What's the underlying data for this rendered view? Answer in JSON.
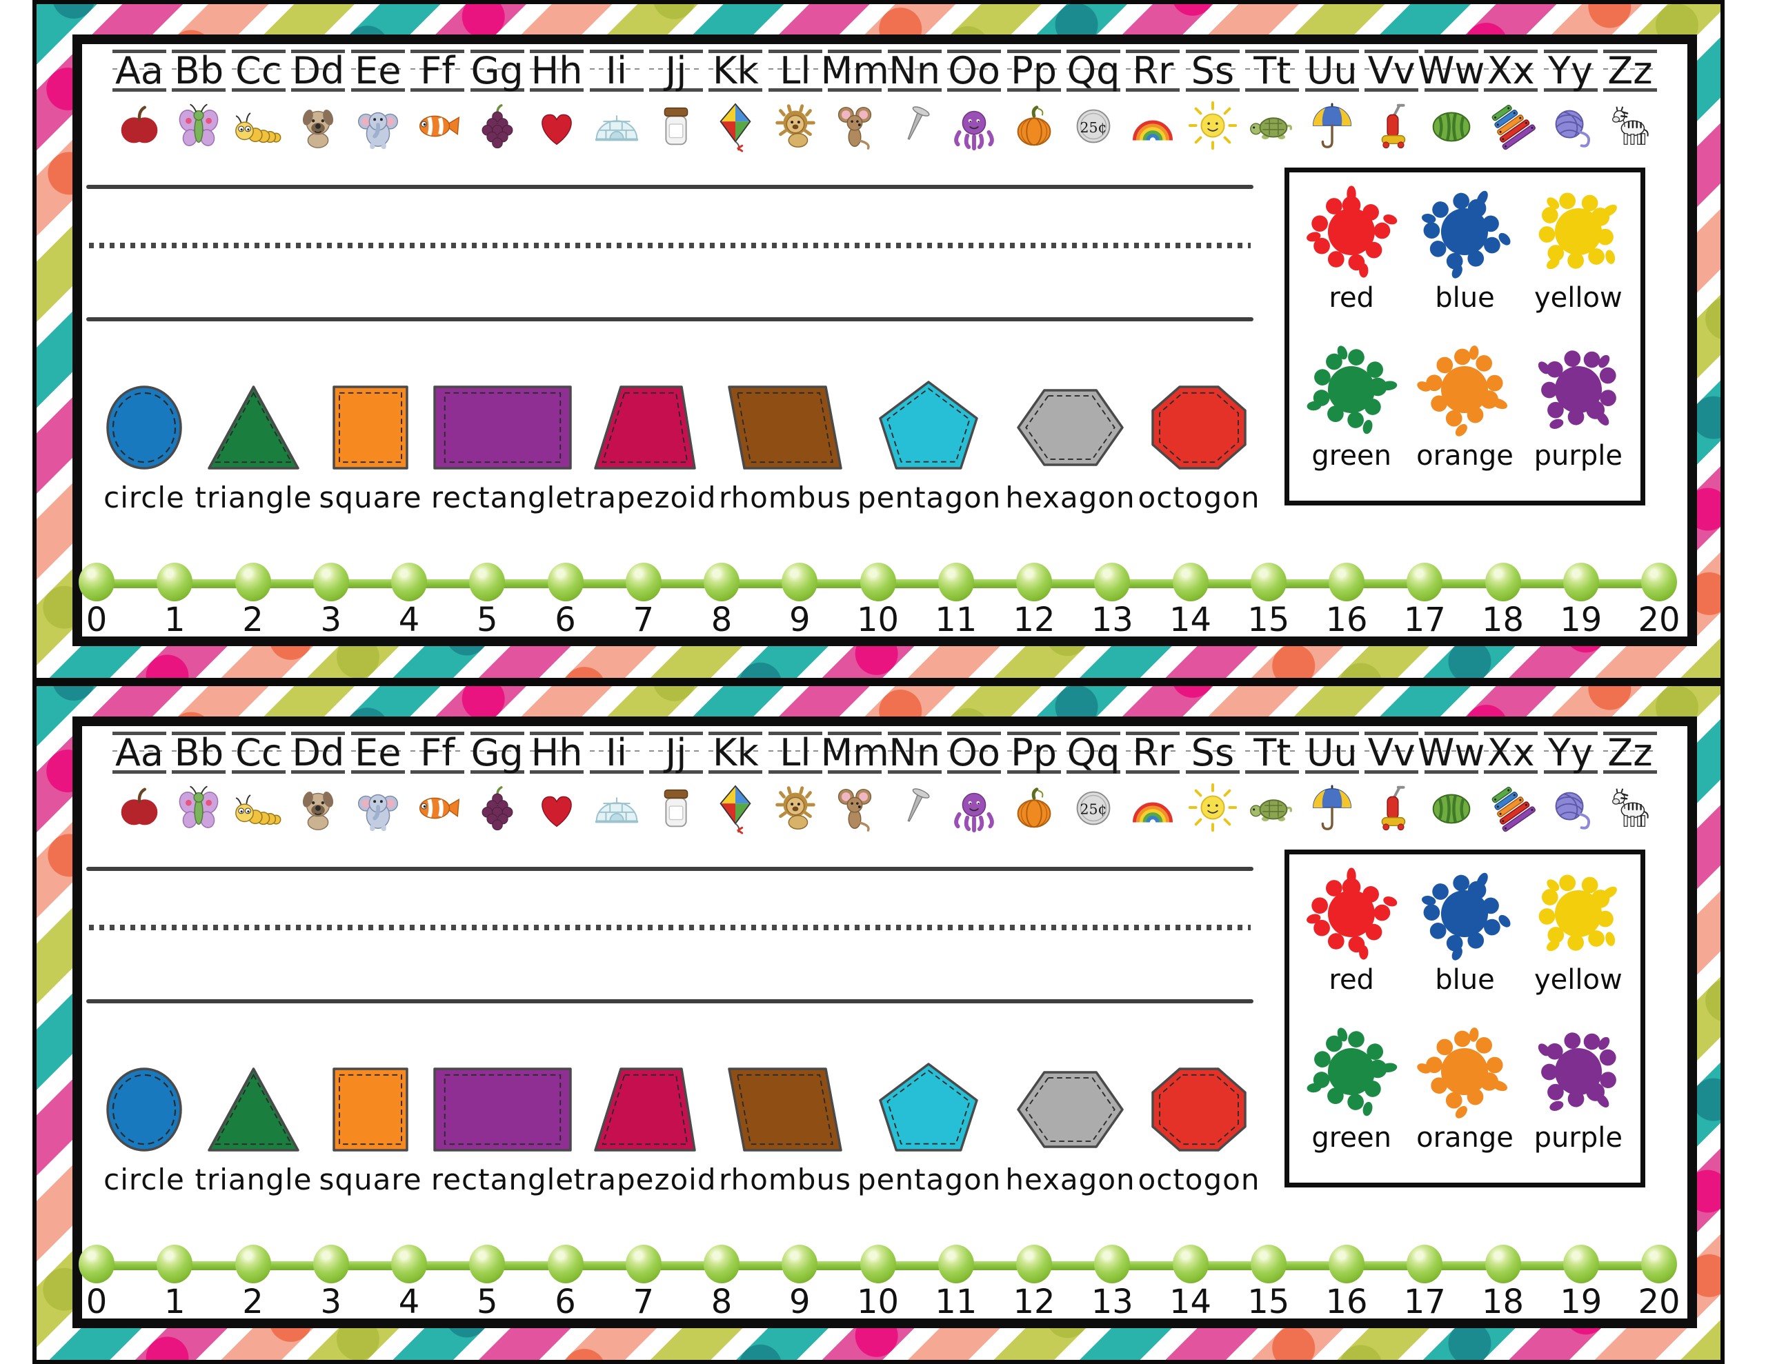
{
  "alphabet": [
    {
      "pair": "Aa",
      "icon": "apple"
    },
    {
      "pair": "Bb",
      "icon": "butterfly"
    },
    {
      "pair": "Cc",
      "icon": "caterpillar"
    },
    {
      "pair": "Dd",
      "icon": "dog"
    },
    {
      "pair": "Ee",
      "icon": "elephant"
    },
    {
      "pair": "Ff",
      "icon": "fish"
    },
    {
      "pair": "Gg",
      "icon": "grapes"
    },
    {
      "pair": "Hh",
      "icon": "heart"
    },
    {
      "pair": "Ii",
      "icon": "igloo"
    },
    {
      "pair": "Jj",
      "icon": "jar"
    },
    {
      "pair": "Kk",
      "icon": "kite"
    },
    {
      "pair": "Ll",
      "icon": "lion"
    },
    {
      "pair": "Mm",
      "icon": "mouse"
    },
    {
      "pair": "Nn",
      "icon": "nail"
    },
    {
      "pair": "Oo",
      "icon": "octopus"
    },
    {
      "pair": "Pp",
      "icon": "pumpkin"
    },
    {
      "pair": "Qq",
      "icon": "quarter",
      "icon_text": "25¢"
    },
    {
      "pair": "Rr",
      "icon": "rainbow"
    },
    {
      "pair": "Ss",
      "icon": "sun"
    },
    {
      "pair": "Tt",
      "icon": "turtle"
    },
    {
      "pair": "Uu",
      "icon": "umbrella"
    },
    {
      "pair": "Vv",
      "icon": "vacuum"
    },
    {
      "pair": "Ww",
      "icon": "watermelon"
    },
    {
      "pair": "Xx",
      "icon": "xylophone"
    },
    {
      "pair": "Yy",
      "icon": "yarn"
    },
    {
      "pair": "Zz",
      "icon": "zebra"
    }
  ],
  "shapes": [
    {
      "label": "circle",
      "type": "circle",
      "color": "#1879BF"
    },
    {
      "label": "triangle",
      "type": "triangle",
      "color": "#1A7E3E"
    },
    {
      "label": "square",
      "type": "square",
      "color": "#F6891F"
    },
    {
      "label": "rectangle",
      "type": "rectangle",
      "color": "#8F2F94"
    },
    {
      "label": "trapezoid",
      "type": "trapezoid",
      "color": "#C60F4F"
    },
    {
      "label": "rhombus",
      "type": "rhombus",
      "color": "#8F4E14"
    },
    {
      "label": "pentagon",
      "type": "pentagon",
      "color": "#27BFD5"
    },
    {
      "label": "hexagon",
      "type": "hexagon",
      "color": "#ACACAC"
    },
    {
      "label": "octogon",
      "type": "octagon",
      "color": "#E53228"
    }
  ],
  "color_chart": [
    {
      "label": "red",
      "hex": "#EC2227"
    },
    {
      "label": "blue",
      "hex": "#1C57A5"
    },
    {
      "label": "yellow",
      "hex": "#F2CE0D"
    },
    {
      "label": "green",
      "hex": "#1B8A44"
    },
    {
      "label": "orange",
      "hex": "#F08A21"
    },
    {
      "label": "purple",
      "hex": "#7E2F90"
    }
  ],
  "number_line": {
    "numbers": [
      "0",
      "1",
      "2",
      "3",
      "4",
      "5",
      "6",
      "7",
      "8",
      "9",
      "10",
      "11",
      "12",
      "13",
      "14",
      "15",
      "16",
      "17",
      "18",
      "19",
      "20"
    ],
    "bead_color": "#8CC63F"
  },
  "border": {
    "stripe_colors": [
      "#2AB3AB",
      "#E2559E",
      "#F5A893",
      "#C6CD57"
    ],
    "dot_colors": [
      "#1C8B90",
      "#EA1480",
      "#EF7150",
      "#B2BE42"
    ],
    "line_color": "#0A0A0A",
    "background": "#FFFFFF"
  }
}
